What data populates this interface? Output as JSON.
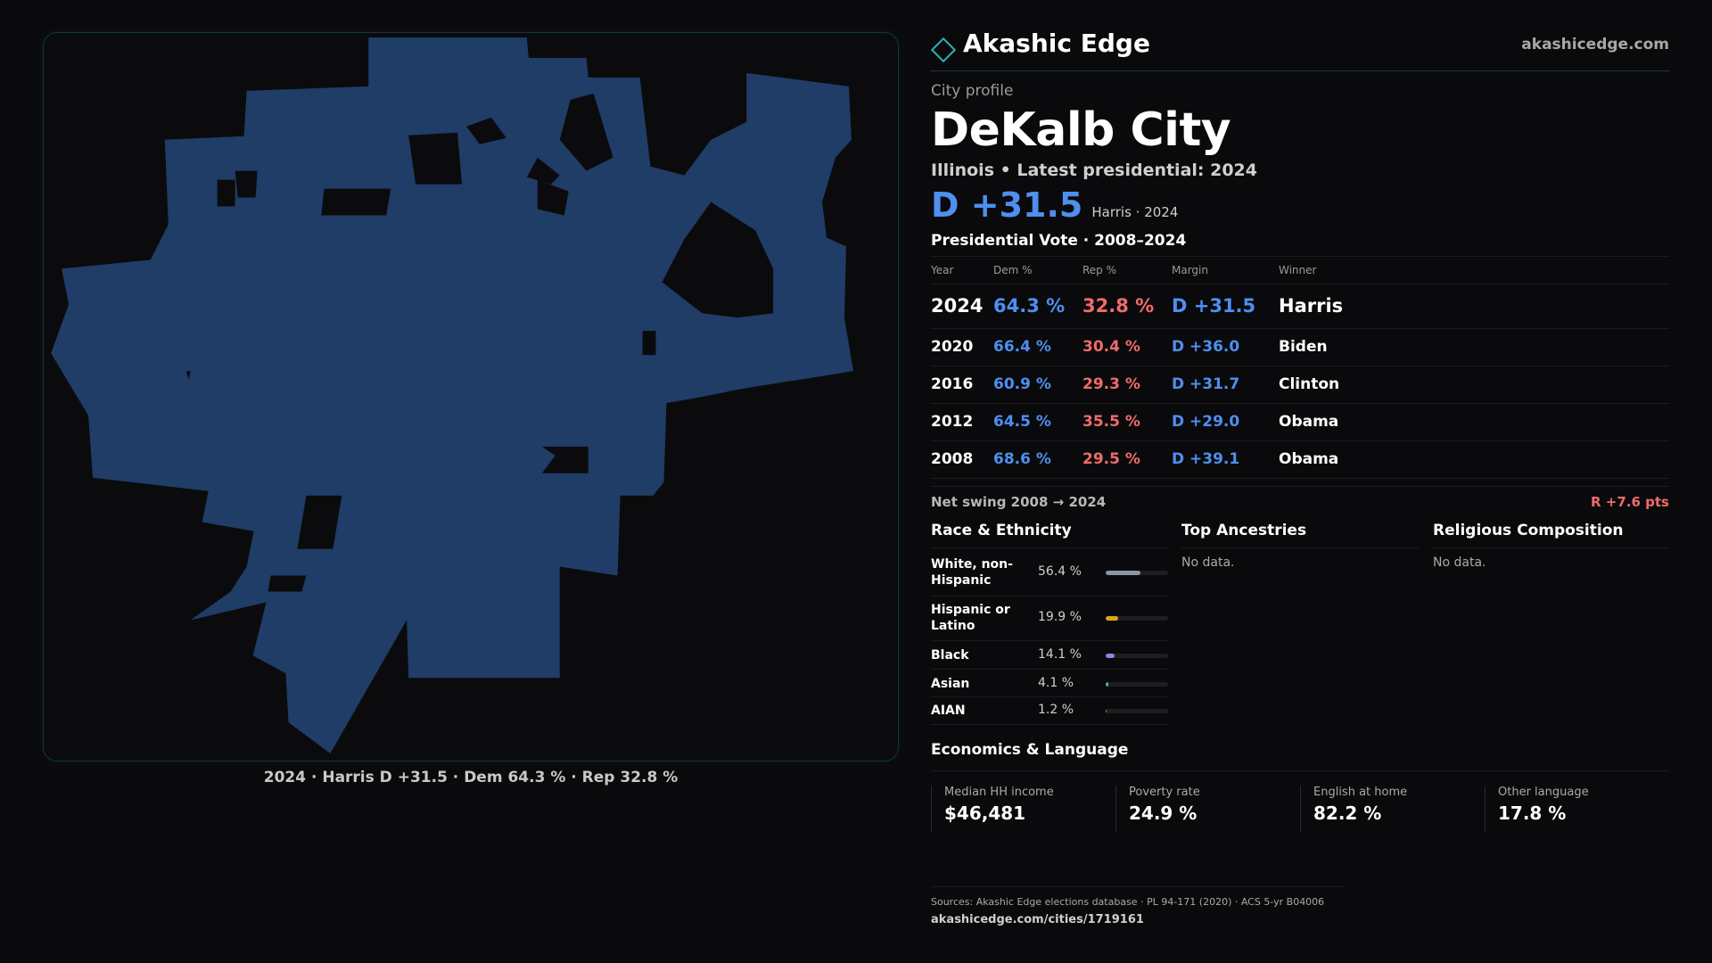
{
  "map": {
    "caption": "2024 · Harris D +31.5 · Dem 64.3 % · Rep 32.8 %",
    "fill_color": "#1f3d66"
  },
  "brand": {
    "name": "Akashic Edge",
    "url": "akashicedge.com",
    "icon": "diamond-logo-icon"
  },
  "profile": {
    "kicker": "City profile",
    "title": "DeKalb City",
    "subhead": "Illinois • Latest presidential: 2024",
    "margin": "D +31.5",
    "margin_sub": "Harris · 2024"
  },
  "presidential": {
    "title": "Presidential Vote · 2008–2024",
    "headers": {
      "year": "Year",
      "dem": "Dem %",
      "rep": "Rep %",
      "margin": "Margin",
      "winner": "Winner"
    },
    "rows": [
      {
        "year": "2024",
        "dem": "64.3 %",
        "rep": "32.8 %",
        "margin": "D +31.5",
        "winner": "Harris"
      },
      {
        "year": "2020",
        "dem": "66.4 %",
        "rep": "30.4 %",
        "margin": "D +36.0",
        "winner": "Biden"
      },
      {
        "year": "2016",
        "dem": "60.9 %",
        "rep": "29.3 %",
        "margin": "D +31.7",
        "winner": "Clinton"
      },
      {
        "year": "2012",
        "dem": "64.5 %",
        "rep": "35.5 %",
        "margin": "D +29.0",
        "winner": "Obama"
      },
      {
        "year": "2008",
        "dem": "68.6 %",
        "rep": "29.5 %",
        "margin": "D +39.1",
        "winner": "Obama"
      }
    ],
    "swing_label": "Net swing 2008 → 2024",
    "swing_value": "R +7.6 pts"
  },
  "race": {
    "title": "Race & Ethnicity",
    "items": [
      {
        "label": "White, non-Hispanic",
        "pct": "56.4 %",
        "value": 56.4,
        "color": "#8d96a6"
      },
      {
        "label": "Hispanic or Latino",
        "pct": "19.9 %",
        "value": 19.9,
        "color": "#e0a21e"
      },
      {
        "label": "Black",
        "pct": "14.1 %",
        "value": 14.1,
        "color": "#9b7fe6"
      },
      {
        "label": "Asian",
        "pct": "4.1 %",
        "value": 4.1,
        "color": "#2fc4a0"
      },
      {
        "label": "AIAN",
        "pct": "1.2 %",
        "value": 1.2,
        "color": "#e0782a"
      }
    ]
  },
  "ancestries": {
    "title": "Top Ancestries",
    "empty": "No data."
  },
  "religion": {
    "title": "Religious Composition",
    "empty": "No data."
  },
  "economics": {
    "title": "Economics & Language",
    "cards": [
      {
        "label": "Median HH income",
        "value": "$46,481"
      },
      {
        "label": "Poverty rate",
        "value": "24.9 %"
      },
      {
        "label": "English at home",
        "value": "82.2 %"
      },
      {
        "label": "Other language",
        "value": "17.8 %"
      }
    ]
  },
  "footer": {
    "sources": "Sources: Akashic Edge elections database · PL 94-171 (2020) · ACS 5-yr B04006",
    "url": "akashicedge.com/cities/1719161"
  }
}
